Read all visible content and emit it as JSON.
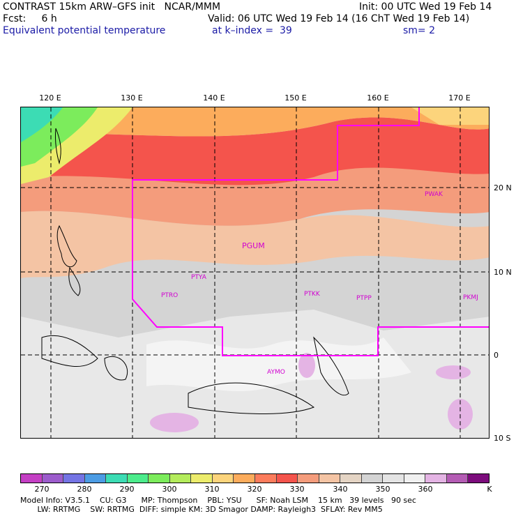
{
  "header": {
    "model_title": "CONTRAST 15km ARW–GFS init   NCAR/MMM",
    "init": "Init: 00 UTC Wed 19 Feb 14",
    "fcst": "Fcst:     6 h",
    "valid": "Valid: 06 UTC Wed 19 Feb 14 (16 ChT Wed 19 Feb 14)",
    "field": "Equivalent potential temperature",
    "level": "at k–index =  39",
    "smooth": "sm= 2"
  },
  "axes": {
    "lon_labels": [
      "120 E",
      "130 E",
      "140 E",
      "150 E",
      "160 E",
      "170 E"
    ],
    "lat_labels": [
      "20 N",
      "10 N",
      "0",
      "10 S"
    ]
  },
  "stations": [
    "PWAK",
    "PGUM",
    "PTYA",
    "PTRO",
    "PTKK",
    "PTPP",
    "PKMJ",
    "AYMO"
  ],
  "colorbar": {
    "colors": [
      "#c43fc4",
      "#9c5ccc",
      "#7474e4",
      "#4c9ce4",
      "#3cdcb4",
      "#4cec8c",
      "#7cec5c",
      "#b4ec5c",
      "#ecec6c",
      "#fcd47c",
      "#fcac5c",
      "#fc7c5c",
      "#f4544c",
      "#f49c7c",
      "#f4c4a4",
      "#e4d4c4",
      "#d4d4d4",
      "#e4e4e4",
      "#f0f0f0",
      "#e4b4e4",
      "#b45cb4",
      "#7c0c7c"
    ],
    "labels": [
      "270",
      "280",
      "290",
      "300",
      "310",
      "320",
      "330",
      "340",
      "350",
      "360",
      "K"
    ]
  },
  "model_info": {
    "line1": "Model Info: V3.5.1    CU: G3      MP: Thompson    PBL: YSU      SF: Noah LSM    15 km   39 levels   90 sec",
    "line2": "       LW: RRTMG    SW: RRTMG  DIFF: simple KM: 3D Smagor DAMP: Rayleigh3  SFLAY: Rev MM5"
  }
}
